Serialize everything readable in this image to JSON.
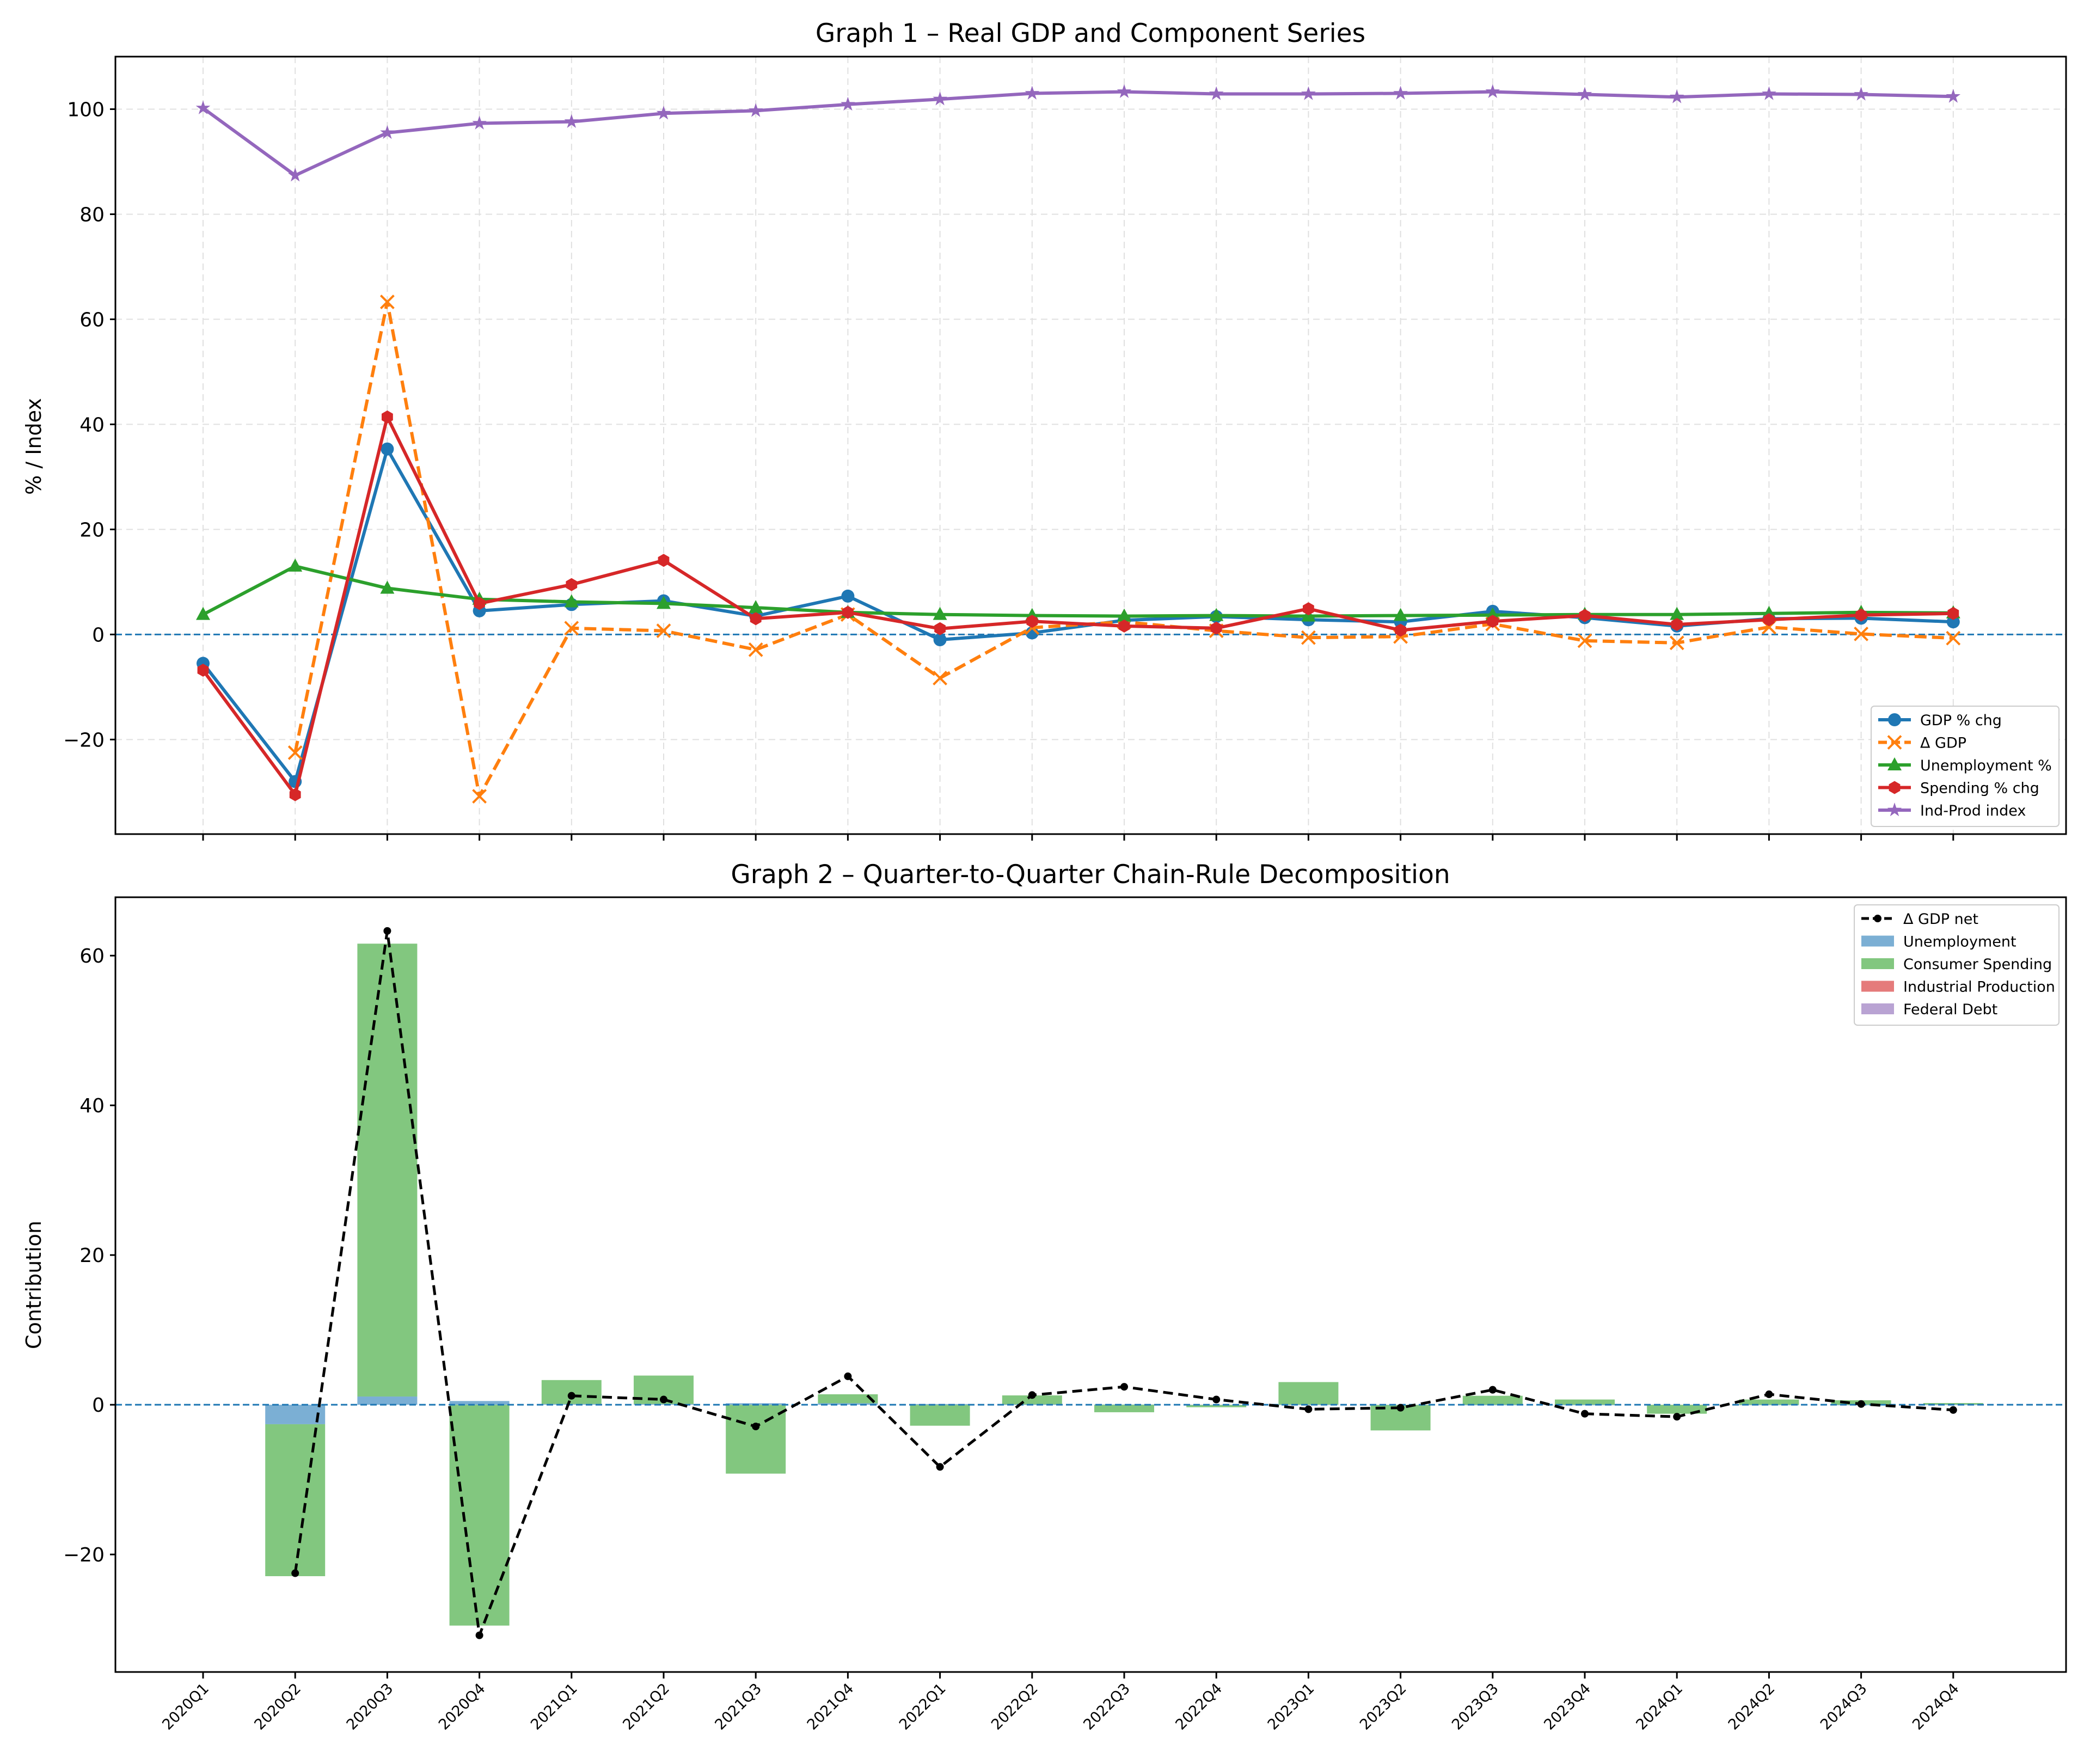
{
  "colors": {
    "gdp": "#1f77b4",
    "delta": "#ff7f0e",
    "unemp": "#2ca02c",
    "spend": "#d62728",
    "indprod": "#9467bd",
    "bar_unemp": "#7bafd4",
    "bar_spend": "#82c77f",
    "bar_ind": "#e57b7b",
    "bar_debt": "#b9a3d3",
    "net": "#000000",
    "zero_line": "#1f77b4"
  },
  "chart_data": [
    {
      "type": "line",
      "title": "Graph 1 – Real GDP and Component Series",
      "xlabel": "",
      "ylabel": "% / Index",
      "ylim": [
        -38,
        110
      ],
      "yticks": [
        -20,
        0,
        20,
        40,
        60,
        80,
        100
      ],
      "ytick_labels": [
        "−20",
        "0",
        "20",
        "40",
        "60",
        "80",
        "100"
      ],
      "grid": true,
      "legend_position": "lower-right",
      "x": [
        "2020Q1",
        "2020Q2",
        "2020Q3",
        "2020Q4",
        "2021Q1",
        "2021Q2",
        "2021Q3",
        "2021Q4",
        "2022Q1",
        "2022Q2",
        "2022Q3",
        "2022Q4",
        "2023Q1",
        "2023Q2",
        "2023Q3",
        "2023Q4",
        "2024Q1",
        "2024Q2",
        "2024Q3",
        "2024Q4"
      ],
      "series": [
        {
          "name": "GDP % chg",
          "style": "solid",
          "marker": "circle",
          "values": [
            -5.5,
            -28.0,
            35.3,
            4.5,
            5.7,
            6.4,
            3.5,
            7.3,
            -1.0,
            0.3,
            2.7,
            3.4,
            2.8,
            2.4,
            4.4,
            3.2,
            1.6,
            3.0,
            3.1,
            2.4
          ]
        },
        {
          "name": "Δ GDP",
          "style": "dashed",
          "marker": "x",
          "values": [
            null,
            -22.5,
            63.3,
            -30.8,
            1.2,
            0.7,
            -2.9,
            3.8,
            -8.3,
            1.3,
            2.4,
            0.7,
            -0.6,
            -0.4,
            2.0,
            -1.2,
            -1.6,
            1.4,
            0.1,
            -0.7
          ]
        },
        {
          "name": "Unemployment %",
          "style": "solid",
          "marker": "triangle",
          "values": [
            3.8,
            13.0,
            8.8,
            6.7,
            6.2,
            5.9,
            5.1,
            4.2,
            3.8,
            3.6,
            3.5,
            3.6,
            3.5,
            3.6,
            3.7,
            3.8,
            3.8,
            4.0,
            4.2,
            4.1
          ]
        },
        {
          "name": "Spending % chg",
          "style": "solid",
          "marker": "hexagon",
          "values": [
            -6.8,
            -30.5,
            41.4,
            5.9,
            9.5,
            14.1,
            3.0,
            4.2,
            1.1,
            2.5,
            1.6,
            1.2,
            4.9,
            0.8,
            2.5,
            3.6,
            1.9,
            2.8,
            3.7,
            4.0
          ]
        },
        {
          "name": "Ind-Prod index",
          "style": "solid",
          "marker": "star",
          "values": [
            100.2,
            87.4,
            95.5,
            97.3,
            97.6,
            99.2,
            99.7,
            100.9,
            101.9,
            103.0,
            103.3,
            102.9,
            102.9,
            103.0,
            103.3,
            102.8,
            102.3,
            102.9,
            102.8,
            102.4
          ]
        }
      ]
    },
    {
      "type": "bar",
      "title": "Graph 2 – Quarter-to-Quarter Chain-Rule Decomposition",
      "xlabel": "",
      "ylabel": "Contribution",
      "ylim": [
        -35.7,
        67.8
      ],
      "yticks": [
        -20,
        0,
        20,
        40,
        60
      ],
      "ytick_labels": [
        "−20",
        "0",
        "20",
        "40",
        "60"
      ],
      "grid": false,
      "legend_position": "top-right",
      "stacked": true,
      "categories": [
        "2020Q1",
        "2020Q2",
        "2020Q3",
        "2020Q4",
        "2021Q1",
        "2021Q2",
        "2021Q3",
        "2021Q4",
        "2022Q1",
        "2022Q2",
        "2022Q3",
        "2022Q4",
        "2023Q1",
        "2023Q2",
        "2023Q3",
        "2023Q4",
        "2024Q1",
        "2024Q2",
        "2024Q3",
        "2024Q4"
      ],
      "series": [
        {
          "name": "Unemployment",
          "kind": "bar",
          "values": [
            0,
            -2.6,
            1.1,
            0.5,
            0.1,
            0.1,
            0.2,
            0.2,
            0.1,
            0.05,
            0.03,
            -0.03,
            0.03,
            -0.03,
            -0.03,
            -0.03,
            0,
            -0.05,
            -0.05,
            0.03
          ]
        },
        {
          "name": "Consumer Spending",
          "kind": "bar",
          "values": [
            0,
            -20.3,
            60.5,
            -29.5,
            3.2,
            3.8,
            -9.2,
            1.2,
            -2.8,
            1.2,
            -1.0,
            -0.3,
            3.0,
            -3.4,
            1.2,
            0.7,
            -1.2,
            0.7,
            0.6,
            0.2
          ]
        },
        {
          "name": "Industrial Production",
          "kind": "bar",
          "values": [
            0,
            0,
            0,
            0,
            0,
            0,
            0,
            0,
            0,
            0,
            0,
            0,
            0,
            0,
            0,
            0,
            0,
            0,
            0,
            0
          ]
        },
        {
          "name": "Federal Debt",
          "kind": "bar",
          "values": [
            0,
            0,
            0,
            0,
            0,
            0,
            0,
            0,
            0,
            0,
            0,
            0,
            0,
            0,
            0,
            0,
            0,
            0,
            0,
            0
          ]
        },
        {
          "name": "Δ GDP net",
          "kind": "line",
          "style": "dashed",
          "values": [
            null,
            -22.5,
            63.3,
            -30.8,
            1.2,
            0.7,
            -2.9,
            3.8,
            -8.3,
            1.3,
            2.4,
            0.7,
            -0.6,
            -0.4,
            2.0,
            -1.2,
            -1.6,
            1.4,
            0.1,
            -0.7
          ]
        }
      ]
    }
  ]
}
